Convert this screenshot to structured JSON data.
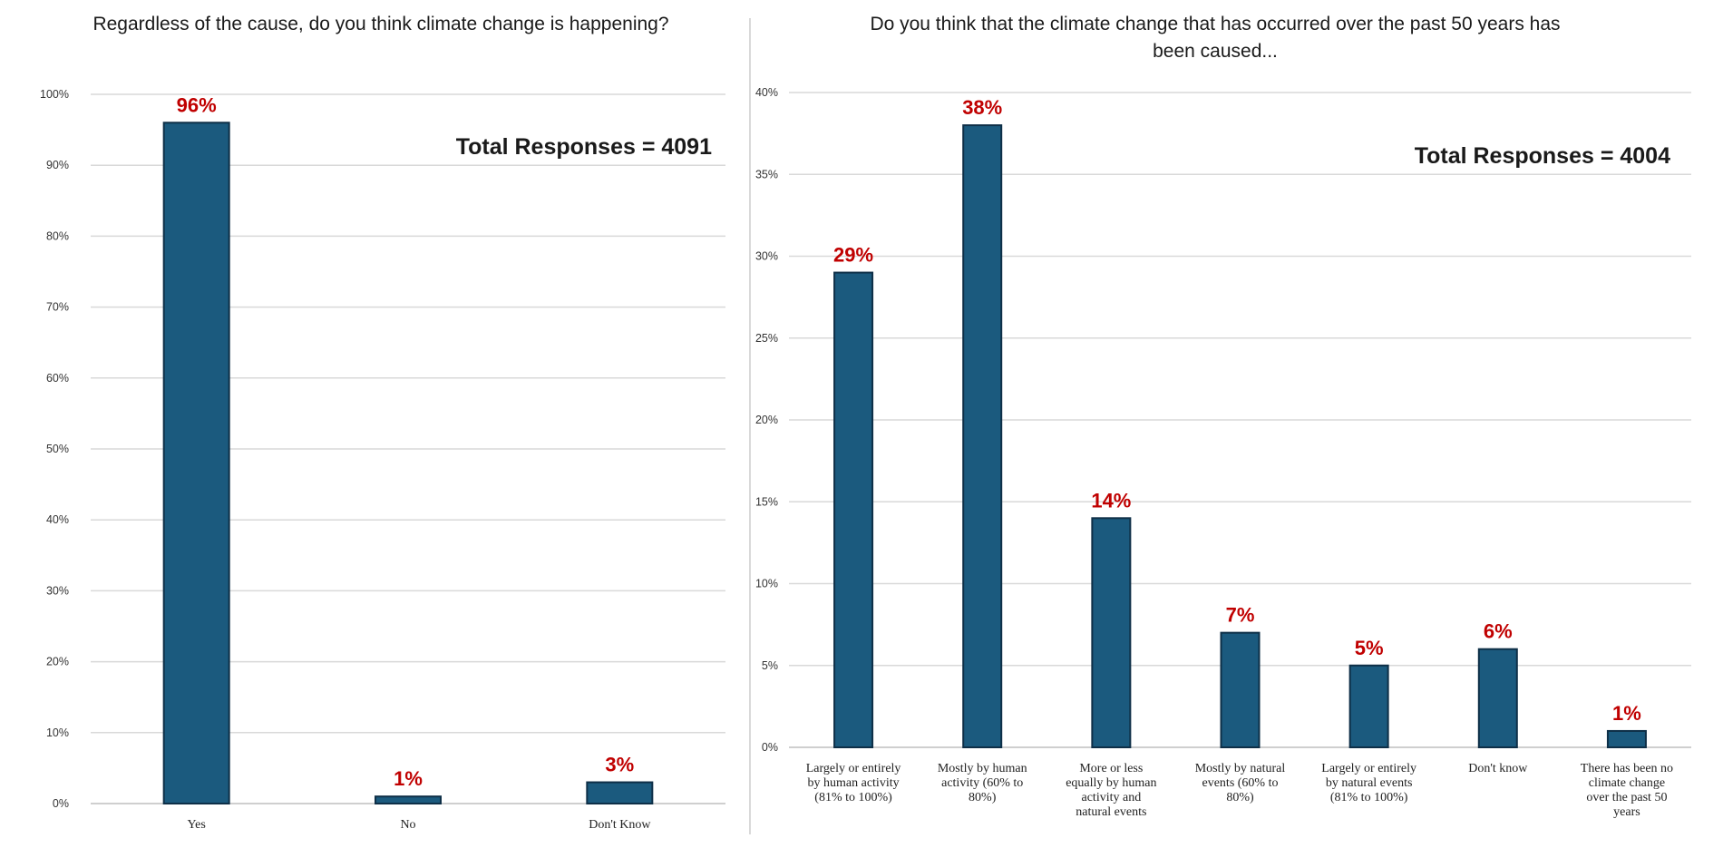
{
  "charts": [
    {
      "title": "Regardless of the cause, do you think climate change is happening?",
      "note": "Total Responses = 4091"
    },
    {
      "title": "Do you think that the climate change that has occurred over the past 50 years has been caused...",
      "note": "Total Responses = 4004"
    }
  ],
  "chart_data": [
    {
      "type": "bar",
      "title": "Regardless of the cause, do you think climate change is happening?",
      "categories": [
        "Yes",
        "No",
        "Don't Know"
      ],
      "values": [
        96,
        1,
        3
      ],
      "data_labels": [
        "96%",
        "1%",
        "3%"
      ],
      "yticks": [
        "0%",
        "10%",
        "20%",
        "30%",
        "40%",
        "50%",
        "60%",
        "70%",
        "80%",
        "90%",
        "100%"
      ],
      "ylim": [
        0,
        100
      ],
      "grid": true,
      "legend": "none",
      "annotation": "Total Responses = 4091",
      "bar_color": "#1b5a7e",
      "label_color": "#c00000"
    },
    {
      "type": "bar",
      "title": "Do you think that the climate change that has occurred over the past 50 years has been caused...",
      "categories": [
        [
          "Largely or entirely",
          "by human activity",
          "(81% to 100%)"
        ],
        [
          "Mostly by human",
          "activity (60% to",
          "80%)"
        ],
        [
          "More or less",
          "equally by human",
          "activity and",
          "natural events"
        ],
        [
          "Mostly by natural",
          "events (60% to",
          "80%)"
        ],
        [
          "Largely or entirely",
          "by natural events",
          "(81% to 100%)"
        ],
        [
          "Don't know"
        ],
        [
          "There has been no",
          "climate change",
          "over the past 50",
          "years"
        ]
      ],
      "values": [
        29,
        38,
        14,
        7,
        5,
        6,
        1
      ],
      "data_labels": [
        "29%",
        "38%",
        "14%",
        "7%",
        "5%",
        "6%",
        "1%"
      ],
      "yticks": [
        "0%",
        "5%",
        "10%",
        "15%",
        "20%",
        "25%",
        "30%",
        "35%",
        "40%"
      ],
      "ylim": [
        0,
        40
      ],
      "grid": true,
      "legend": "none",
      "annotation": "Total Responses = 4004",
      "bar_color": "#1b5a7e",
      "label_color": "#c00000"
    }
  ]
}
